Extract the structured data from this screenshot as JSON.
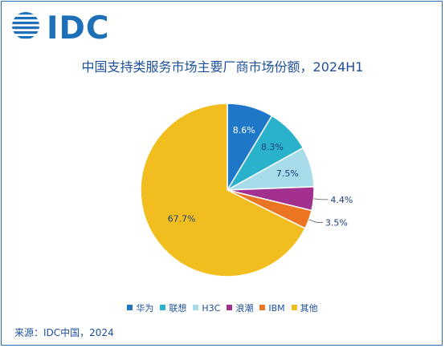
{
  "brand": {
    "logo_text": "IDC",
    "color": "#1d6fb8"
  },
  "chart_data": {
    "type": "pie",
    "title": "中国支持类服务市场主要厂商市场份额，2024H1",
    "categories": [
      "华为",
      "联想",
      "H3C",
      "浪潮",
      "IBM",
      "其他"
    ],
    "values": [
      8.6,
      8.3,
      7.5,
      4.4,
      3.5,
      67.7
    ],
    "labels": [
      "8.6%",
      "8.3%",
      "7.5%",
      "4.4%",
      "3.5%",
      "67.7%"
    ],
    "colors": [
      "#1f77c8",
      "#2ab1cc",
      "#a8dcea",
      "#a2308e",
      "#ec7524",
      "#f2be1f"
    ],
    "legend_position": "bottom",
    "start_angle": "12 o'clock, clockwise"
  },
  "source": "来源：IDC中国，2024"
}
